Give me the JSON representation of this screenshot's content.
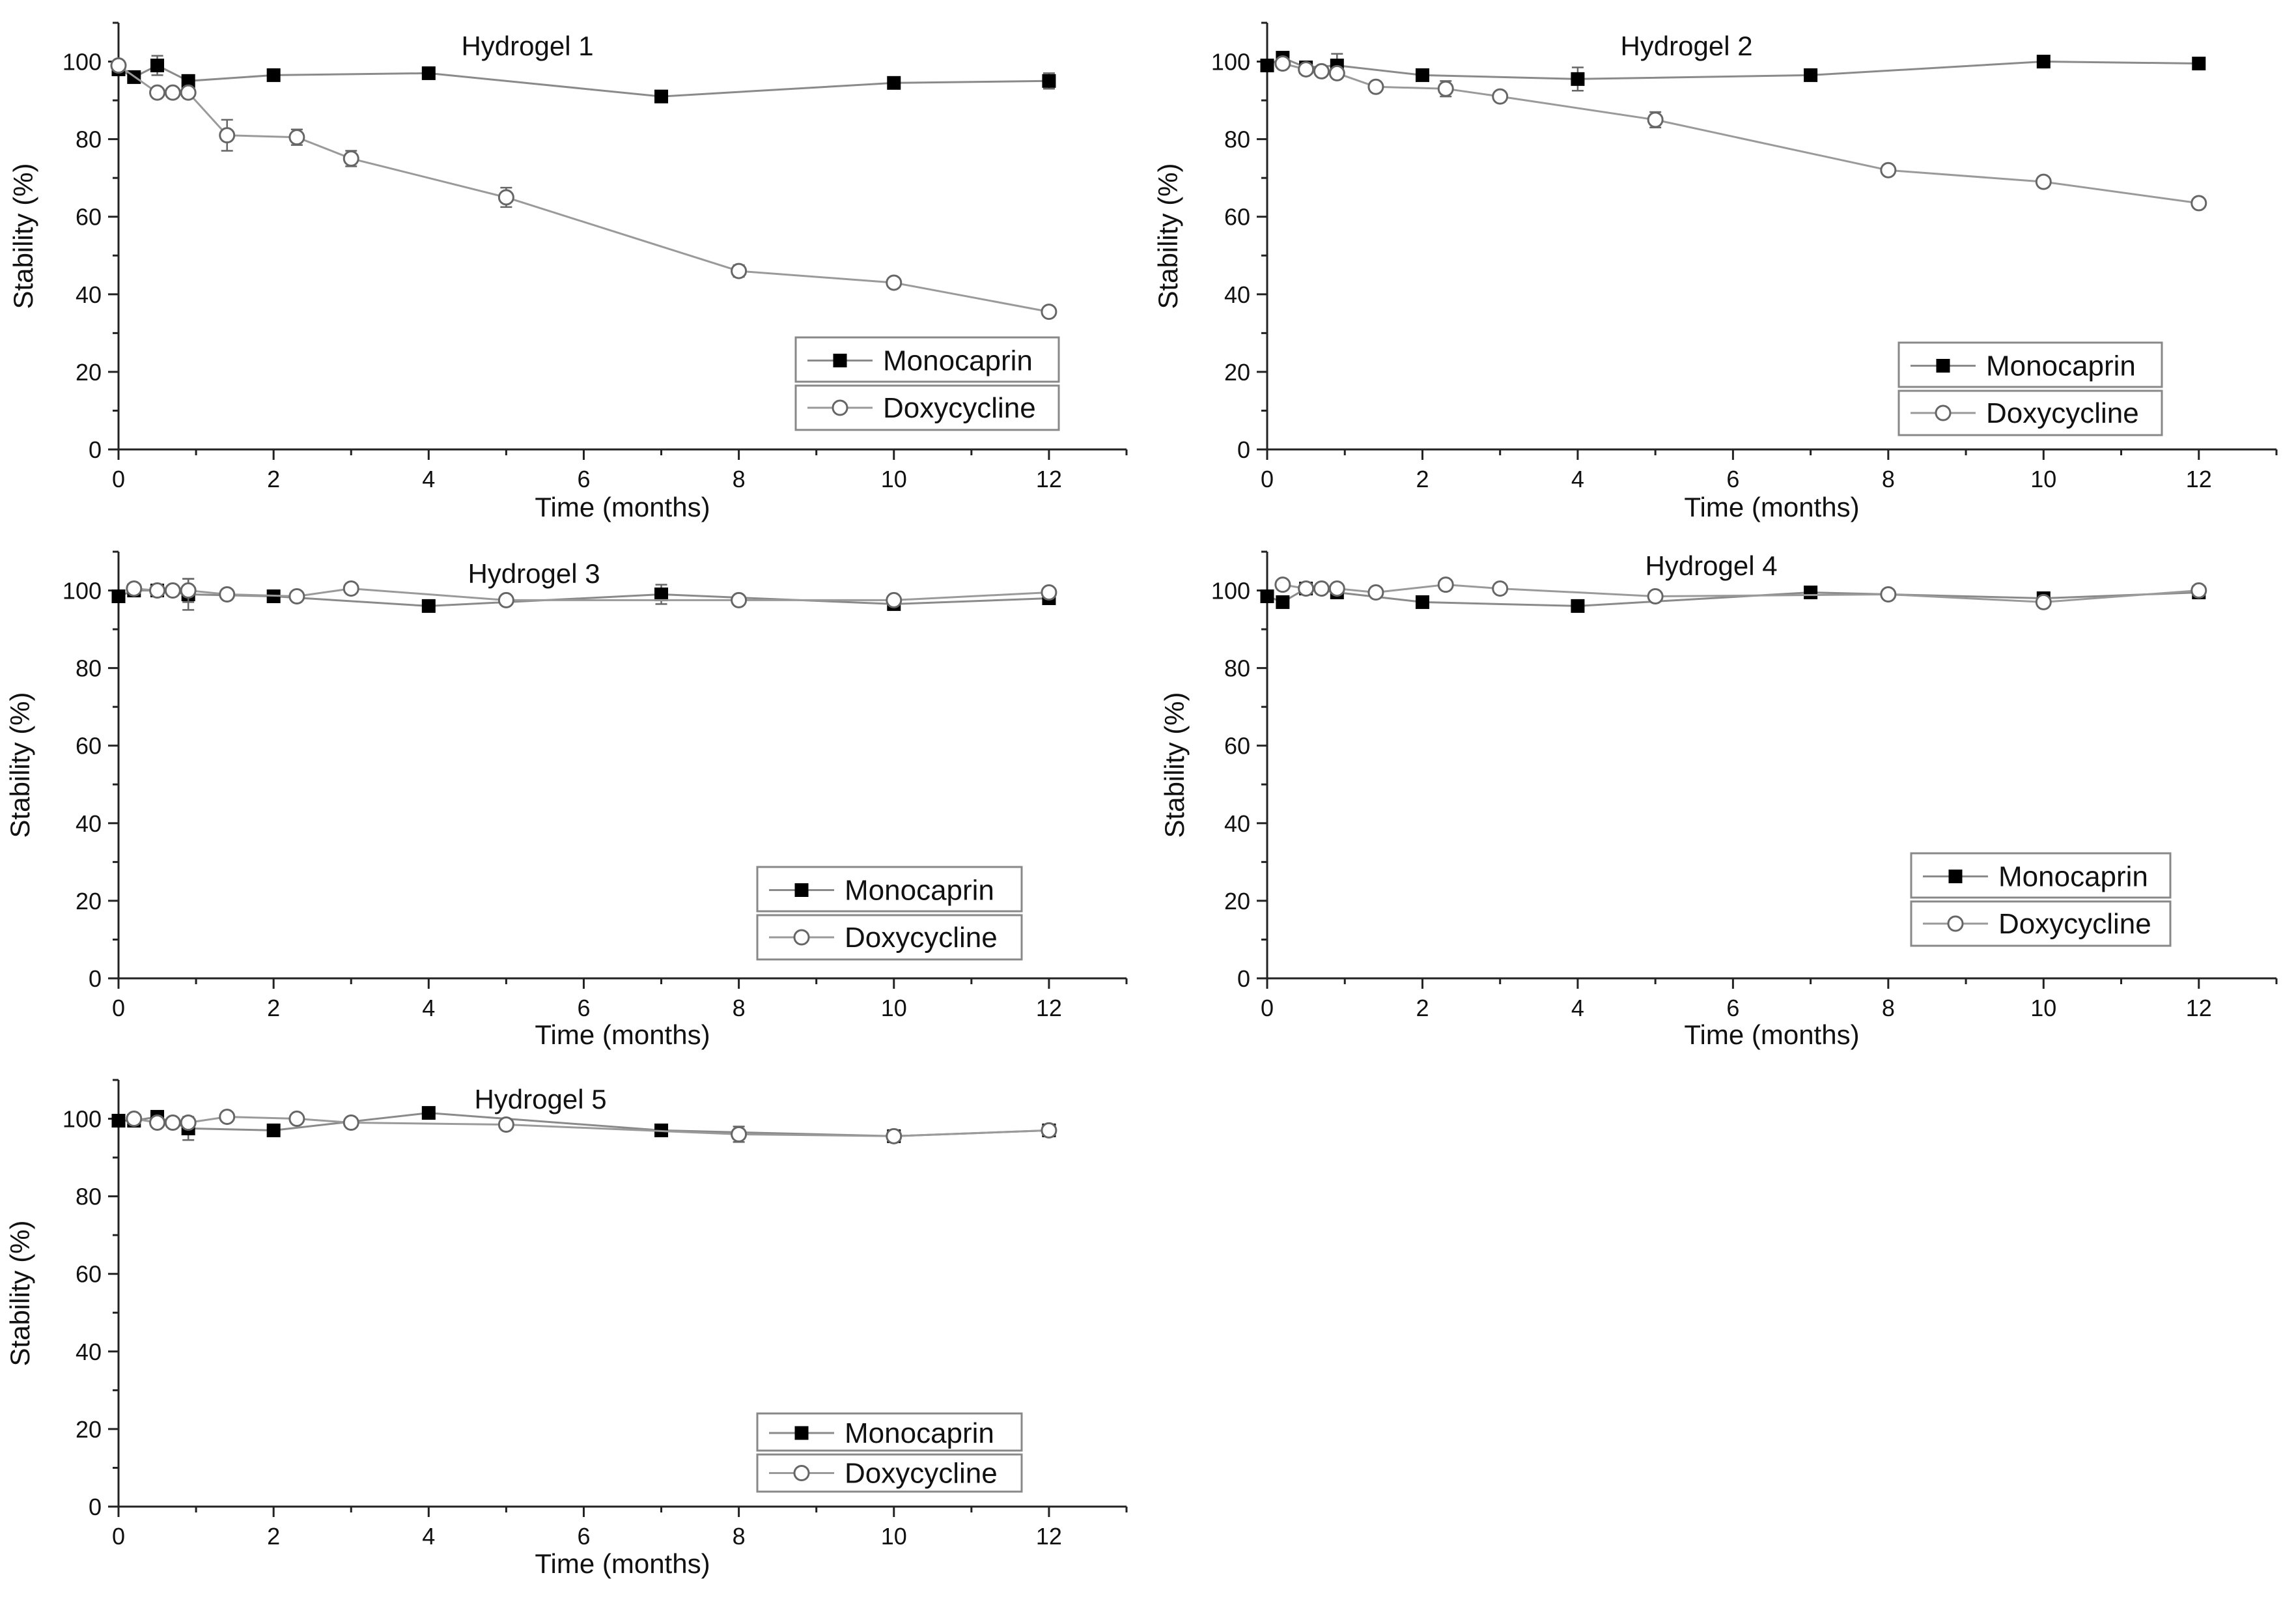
{
  "figure": {
    "accent_mono": "#000000",
    "accent_doxy": "#888888"
  },
  "chart_data": [
    {
      "type": "line",
      "title": "Hydrogel 1",
      "xlabel": "Time (months)",
      "ylabel": "Stability (%)",
      "xlim": [
        0,
        13
      ],
      "ylim": [
        0,
        110
      ],
      "xticks": [
        0,
        2,
        4,
        6,
        8,
        10,
        12
      ],
      "yticks": [
        0,
        20,
        40,
        60,
        80,
        100
      ],
      "legend_position": "bottom-right",
      "series": [
        {
          "name": "Monocaprin",
          "marker": "filled-square",
          "x": [
            0,
            0.2,
            0.5,
            0.9,
            2,
            4,
            7,
            10,
            12
          ],
          "y": [
            98,
            96,
            99,
            95,
            96.5,
            97,
            91,
            94.5,
            95
          ],
          "err": [
            1,
            1,
            2.5,
            1.5,
            1,
            1,
            1,
            1,
            2
          ]
        },
        {
          "name": "Doxycycline",
          "marker": "open-circle",
          "x": [
            0,
            0.5,
            0.7,
            0.9,
            1.4,
            2.3,
            3,
            5,
            8,
            10,
            12
          ],
          "y": [
            99,
            92,
            92,
            92,
            81,
            80.5,
            75,
            65,
            46,
            43,
            35.5
          ],
          "err": [
            1,
            1,
            1,
            1,
            4,
            2,
            2,
            2.5,
            1.5,
            1,
            1
          ]
        }
      ]
    },
    {
      "type": "line",
      "title": "Hydrogel 2",
      "xlabel": "Time (months)",
      "ylabel": "Stability (%)",
      "xlim": [
        0,
        13
      ],
      "ylim": [
        0,
        110
      ],
      "xticks": [
        0,
        2,
        4,
        6,
        8,
        10,
        12
      ],
      "yticks": [
        0,
        20,
        40,
        60,
        80,
        100
      ],
      "legend_position": "bottom-right",
      "series": [
        {
          "name": "Monocaprin",
          "marker": "filled-square",
          "x": [
            0,
            0.2,
            0.5,
            0.9,
            2,
            4,
            7,
            10,
            12
          ],
          "y": [
            99,
            101,
            98.5,
            99,
            96.5,
            95.5,
            96.5,
            100,
            99.5
          ],
          "err": [
            1,
            1,
            1,
            3,
            1,
            3,
            1,
            1,
            1
          ]
        },
        {
          "name": "Doxycycline",
          "marker": "open-circle",
          "x": [
            0.2,
            0.5,
            0.7,
            0.9,
            1.4,
            2.3,
            3,
            5,
            8,
            10,
            12
          ],
          "y": [
            99.5,
            98,
            97.5,
            97,
            93.5,
            93,
            91,
            85,
            72,
            69,
            63.5
          ],
          "err": [
            1,
            1,
            1,
            1,
            1,
            2,
            1,
            2,
            1,
            1,
            1
          ]
        }
      ]
    },
    {
      "type": "line",
      "title": "Hydrogel 3",
      "xlabel": "Time (months)",
      "ylabel": "Stability (%)",
      "xlim": [
        0,
        13
      ],
      "ylim": [
        0,
        110
      ],
      "xticks": [
        0,
        2,
        4,
        6,
        8,
        10,
        12
      ],
      "yticks": [
        0,
        20,
        40,
        60,
        80,
        100
      ],
      "legend_position": "bottom-right",
      "series": [
        {
          "name": "Monocaprin",
          "marker": "filled-square",
          "x": [
            0,
            0.2,
            0.5,
            0.9,
            2,
            4,
            7,
            10,
            12
          ],
          "y": [
            98.5,
            100,
            100,
            99,
            98.5,
            96,
            99,
            96.5,
            98
          ],
          "err": [
            1,
            1,
            1,
            4,
            1,
            1,
            2.5,
            1,
            1
          ]
        },
        {
          "name": "Doxycycline",
          "marker": "open-circle",
          "x": [
            0.2,
            0.5,
            0.7,
            0.9,
            1.4,
            2.3,
            3,
            5,
            8,
            10,
            12
          ],
          "y": [
            100.5,
            100,
            100,
            100,
            99,
            98.5,
            100.5,
            97.5,
            97.5,
            97.5,
            99.5
          ],
          "err": [
            1,
            1,
            1,
            3,
            1,
            1,
            1,
            1,
            1,
            1,
            1
          ]
        }
      ]
    },
    {
      "type": "line",
      "title": "Hydrogel 4",
      "xlabel": "Time (months)",
      "ylabel": "Stability (%)",
      "xlim": [
        0,
        13
      ],
      "ylim": [
        0,
        110
      ],
      "xticks": [
        0,
        2,
        4,
        6,
        8,
        10,
        12
      ],
      "yticks": [
        0,
        20,
        40,
        60,
        80,
        100
      ],
      "legend_position": "bottom-right",
      "series": [
        {
          "name": "Monocaprin",
          "marker": "filled-square",
          "x": [
            0,
            0.2,
            0.5,
            0.9,
            2,
            4,
            7,
            10,
            12
          ],
          "y": [
            98.5,
            97,
            100.5,
            99.5,
            97,
            96,
            99.5,
            98,
            99.5
          ],
          "err": [
            1,
            1,
            1,
            1,
            1,
            1,
            1,
            1,
            1
          ]
        },
        {
          "name": "Doxycycline",
          "marker": "open-circle",
          "x": [
            0.2,
            0.5,
            0.7,
            0.9,
            1.4,
            2.3,
            3,
            5,
            8,
            10,
            12
          ],
          "y": [
            101.5,
            100.5,
            100.5,
            100.5,
            99.5,
            101.5,
            100.5,
            98.5,
            99,
            97,
            100
          ],
          "err": [
            1,
            1,
            1,
            1,
            1,
            1,
            1,
            1,
            1,
            1,
            1
          ]
        }
      ]
    },
    {
      "type": "line",
      "title": "Hydrogel 5",
      "xlabel": "Time (months)",
      "ylabel": "Stability (%)",
      "xlim": [
        0,
        13
      ],
      "ylim": [
        0,
        110
      ],
      "xticks": [
        0,
        2,
        4,
        6,
        8,
        10,
        12
      ],
      "yticks": [
        0,
        20,
        40,
        60,
        80,
        100
      ],
      "legend_position": "bottom-right",
      "series": [
        {
          "name": "Monocaprin",
          "marker": "filled-square",
          "x": [
            0,
            0.2,
            0.5,
            0.9,
            2,
            4,
            7,
            10,
            12
          ],
          "y": [
            99.5,
            99.5,
            100.5,
            97.5,
            97,
            101.5,
            97,
            95.5,
            97
          ],
          "err": [
            1,
            1,
            1,
            3,
            1,
            1,
            1,
            1,
            1
          ]
        },
        {
          "name": "Doxycycline",
          "marker": "open-circle",
          "x": [
            0.2,
            0.5,
            0.7,
            0.9,
            1.4,
            2.3,
            3,
            5,
            8,
            10,
            12
          ],
          "y": [
            100,
            99,
            99,
            99,
            100.5,
            100,
            99,
            98.5,
            96,
            95.5,
            97
          ],
          "err": [
            1,
            1,
            1,
            1,
            1,
            1,
            1,
            1,
            2,
            1,
            1
          ]
        }
      ]
    }
  ]
}
